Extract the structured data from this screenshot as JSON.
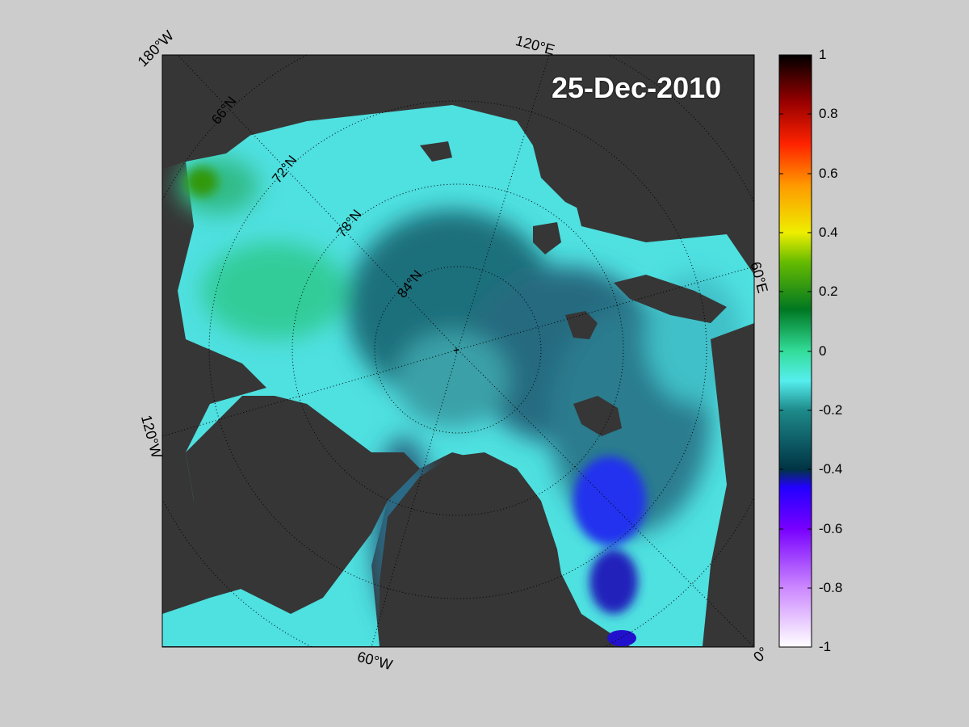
{
  "map": {
    "date": "25-Dec-2010",
    "lon_labels": {
      "w180": "180°W",
      "e120": "120°E",
      "e60": "60°E",
      "w120": "120°W",
      "w60": "60°W",
      "zero": "0°"
    },
    "lat_labels": {
      "n66": "66°N",
      "n72": "72°N",
      "n78": "78°N",
      "n84": "84°N"
    }
  },
  "colorbar": {
    "min": -1,
    "max": 1,
    "ticks": [
      "1",
      "0.8",
      "0.6",
      "0.4",
      "0.2",
      "0",
      "-0.2",
      "-0.4",
      "-0.6",
      "-0.8",
      "-1"
    ],
    "colors": [
      "#ffffff",
      "#cc88ff",
      "#7700ff",
      "#2200ff",
      "#003344",
      "#1e8a8a",
      "#55eeee",
      "#33dd99",
      "#007722",
      "#66bb00",
      "#eeee00",
      "#ff9900",
      "#ff2200",
      "#990000",
      "#000000"
    ]
  }
}
